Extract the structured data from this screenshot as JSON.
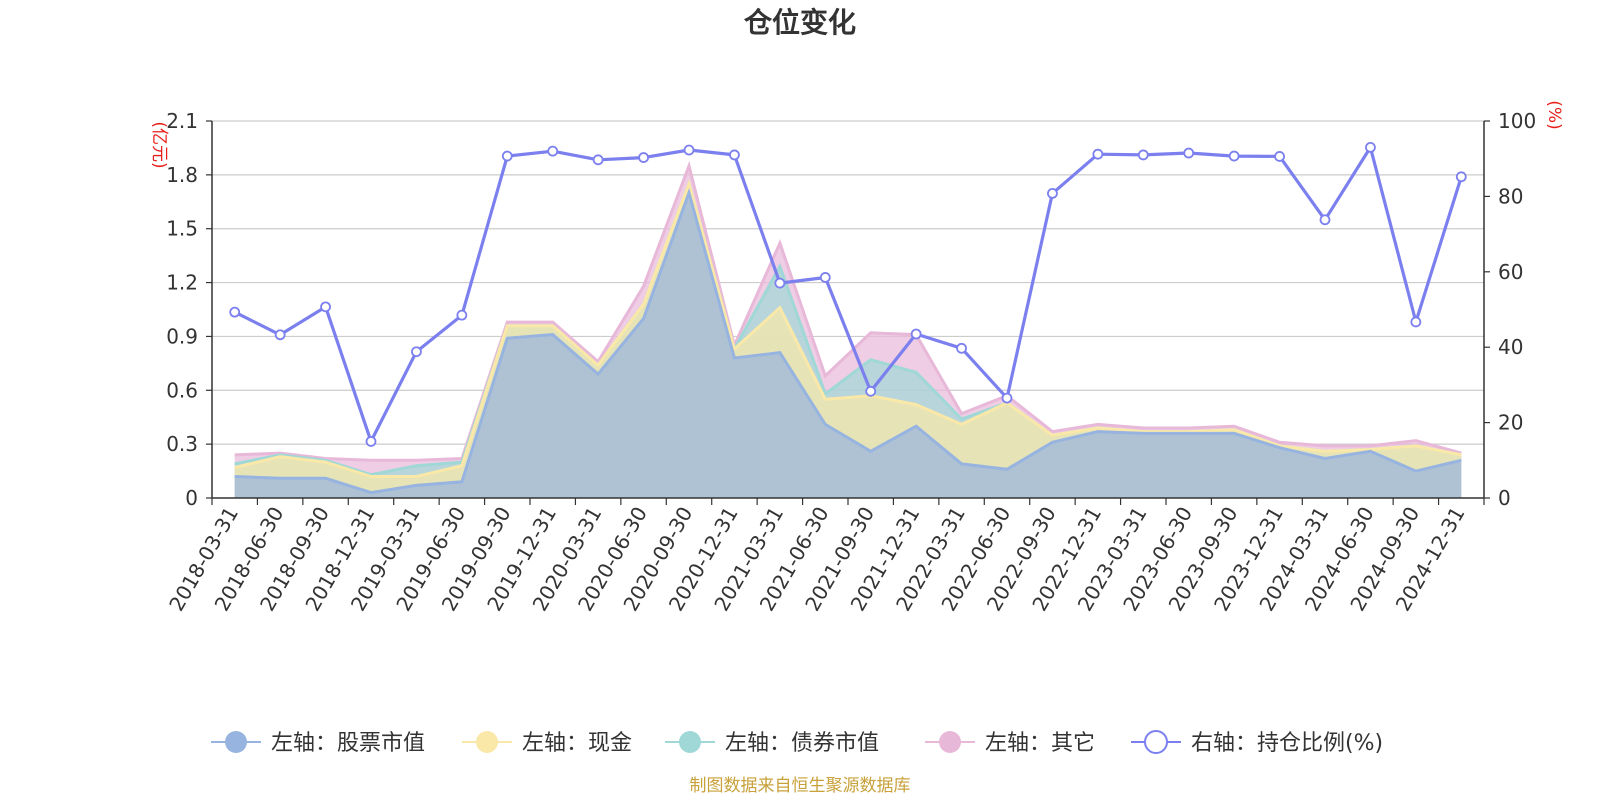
{
  "chart_data": {
    "type": "area",
    "title": "仓位变化",
    "y_left_unit": "(亿元)",
    "y_right_unit": "(%)",
    "ylim_left": [
      0,
      2.1
    ],
    "ylim_right": [
      0,
      100
    ],
    "yticks_left": [
      "0",
      "0.3",
      "0.6",
      "0.9",
      "1.2",
      "1.5",
      "1.8",
      "2.1"
    ],
    "yticks_right": [
      "0",
      "20",
      "40",
      "60",
      "80",
      "100"
    ],
    "grid": true,
    "legend_position": "bottom",
    "stacked": true,
    "categories": [
      "2018-03-31",
      "2018-06-30",
      "2018-09-30",
      "2018-12-31",
      "2019-03-31",
      "2019-06-30",
      "2019-09-30",
      "2019-12-31",
      "2020-03-31",
      "2020-06-30",
      "2020-09-30",
      "2020-12-31",
      "2021-03-31",
      "2021-06-30",
      "2021-09-30",
      "2021-12-31",
      "2022-03-31",
      "2022-06-30",
      "2022-09-30",
      "2022-12-31",
      "2023-03-31",
      "2023-06-30",
      "2023-09-30",
      "2023-12-31",
      "2024-03-31",
      "2024-06-30",
      "2024-09-30",
      "2024-12-31"
    ],
    "series": [
      {
        "name": "左轴：股票市值",
        "axis": "left",
        "kind": "area",
        "color": "#97b4e0",
        "values": [
          0.12,
          0.11,
          0.11,
          0.03,
          0.07,
          0.09,
          0.89,
          0.91,
          0.69,
          1.0,
          1.7,
          0.78,
          0.81,
          0.41,
          0.26,
          0.4,
          0.19,
          0.16,
          0.31,
          0.37,
          0.36,
          0.36,
          0.36,
          0.28,
          0.22,
          0.26,
          0.15,
          0.21
        ]
      },
      {
        "name": "左轴：现金",
        "axis": "left",
        "kind": "area",
        "color": "#fae8a8",
        "values": [
          0.05,
          0.12,
          0.09,
          0.09,
          0.05,
          0.09,
          0.07,
          0.05,
          0.05,
          0.08,
          0.05,
          0.05,
          0.25,
          0.14,
          0.31,
          0.12,
          0.22,
          0.37,
          0.04,
          0.02,
          0.01,
          0.01,
          0.02,
          0.01,
          0.04,
          0.01,
          0.14,
          0.03
        ]
      },
      {
        "name": "左轴：债券市值",
        "axis": "left",
        "kind": "area",
        "color": "#9fd8d6",
        "values": [
          0.02,
          0.01,
          0.01,
          0.01,
          0.06,
          0.02,
          0,
          0,
          0,
          0,
          0,
          0,
          0.23,
          0.03,
          0.2,
          0.18,
          0.03,
          0,
          0,
          0,
          0,
          0,
          0,
          0,
          0,
          0,
          0,
          0
        ]
      },
      {
        "name": "左轴：其它",
        "axis": "left",
        "kind": "area",
        "color": "#e8b8d9",
        "values": [
          0.05,
          0.01,
          0.01,
          0.08,
          0.03,
          0.02,
          0.02,
          0.02,
          0.02,
          0.1,
          0.1,
          0.02,
          0.13,
          0.1,
          0.15,
          0.21,
          0.03,
          0.04,
          0.02,
          0.02,
          0.02,
          0.02,
          0.02,
          0.02,
          0.03,
          0.02,
          0.03,
          0.01
        ]
      },
      {
        "name": "右轴：持仓比例(%)",
        "axis": "right",
        "kind": "line",
        "color": "#7b80ee",
        "values": [
          49.3,
          43.3,
          50.7,
          15.0,
          38.8,
          48.5,
          90.7,
          92.0,
          89.7,
          90.3,
          92.3,
          91.0,
          57.0,
          58.5,
          28.3,
          43.5,
          39.7,
          26.5,
          80.8,
          91.2,
          91.0,
          91.5,
          90.7,
          90.6,
          73.8,
          93.0,
          46.7,
          85.2
        ]
      }
    ]
  },
  "footer": "制图数据来自恒生聚源数据库"
}
